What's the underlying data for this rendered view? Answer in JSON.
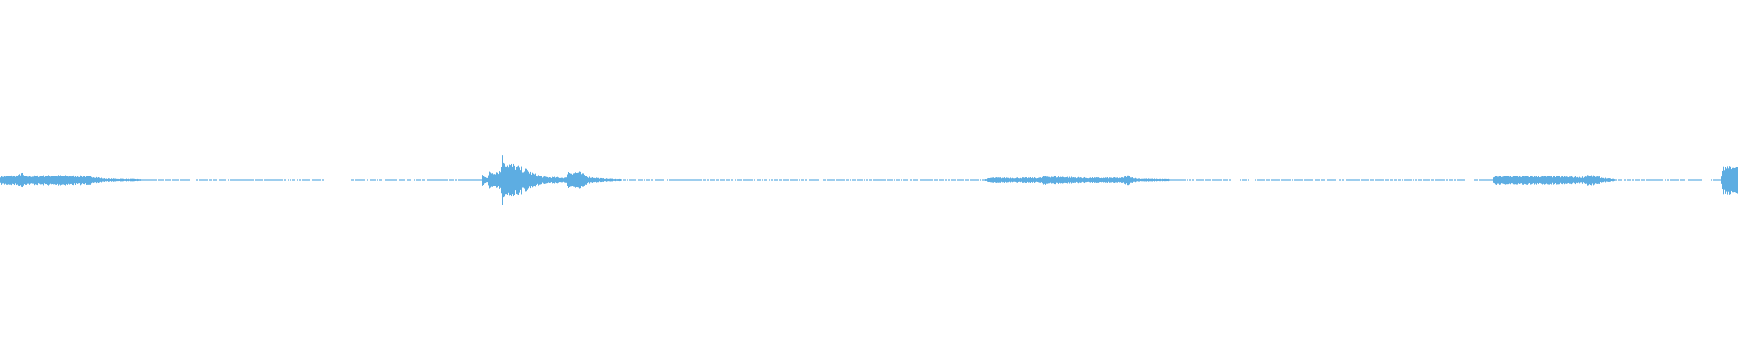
{
  "waveform": {
    "color": "#5DADE2",
    "background": "#FFFFFF",
    "type": "audio-waveform"
  }
}
